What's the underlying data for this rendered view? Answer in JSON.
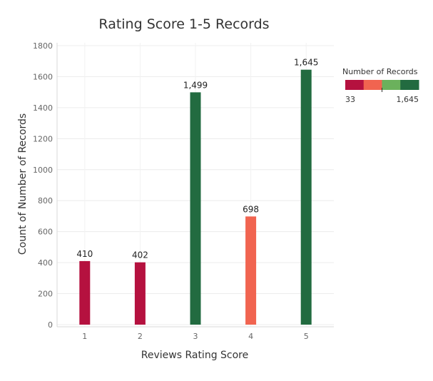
{
  "chart_data": {
    "type": "bar",
    "title": "Rating Score 1-5 Records",
    "xlabel": "Reviews Rating Score",
    "ylabel": "Count of Number of Records",
    "categories": [
      "1",
      "2",
      "3",
      "4",
      "5"
    ],
    "values": [
      410,
      402,
      1499,
      698,
      1645
    ],
    "data_labels": [
      "410",
      "402",
      "1,499",
      "698",
      "1,645"
    ],
    "bar_colors": [
      "#b5113f",
      "#b5113f",
      "#226b40",
      "#f16450",
      "#226b40"
    ],
    "ylim": [
      0,
      1800
    ],
    "yticks": [
      0,
      200,
      400,
      600,
      800,
      1000,
      1200,
      1400,
      1600,
      1800
    ],
    "ytick_labels": [
      "0",
      "200",
      "400",
      "600",
      "800",
      "1000",
      "1200",
      "1400",
      "1600",
      "1800"
    ],
    "grid": true,
    "legend": {
      "title": "Number of Records",
      "min_label": "33",
      "max_label": "1,645",
      "min_value": 33,
      "max_value": 1645,
      "palette": [
        "#b5113f",
        "#f16450",
        "#6bb15c",
        "#226b40"
      ],
      "placement": "top-right"
    }
  }
}
